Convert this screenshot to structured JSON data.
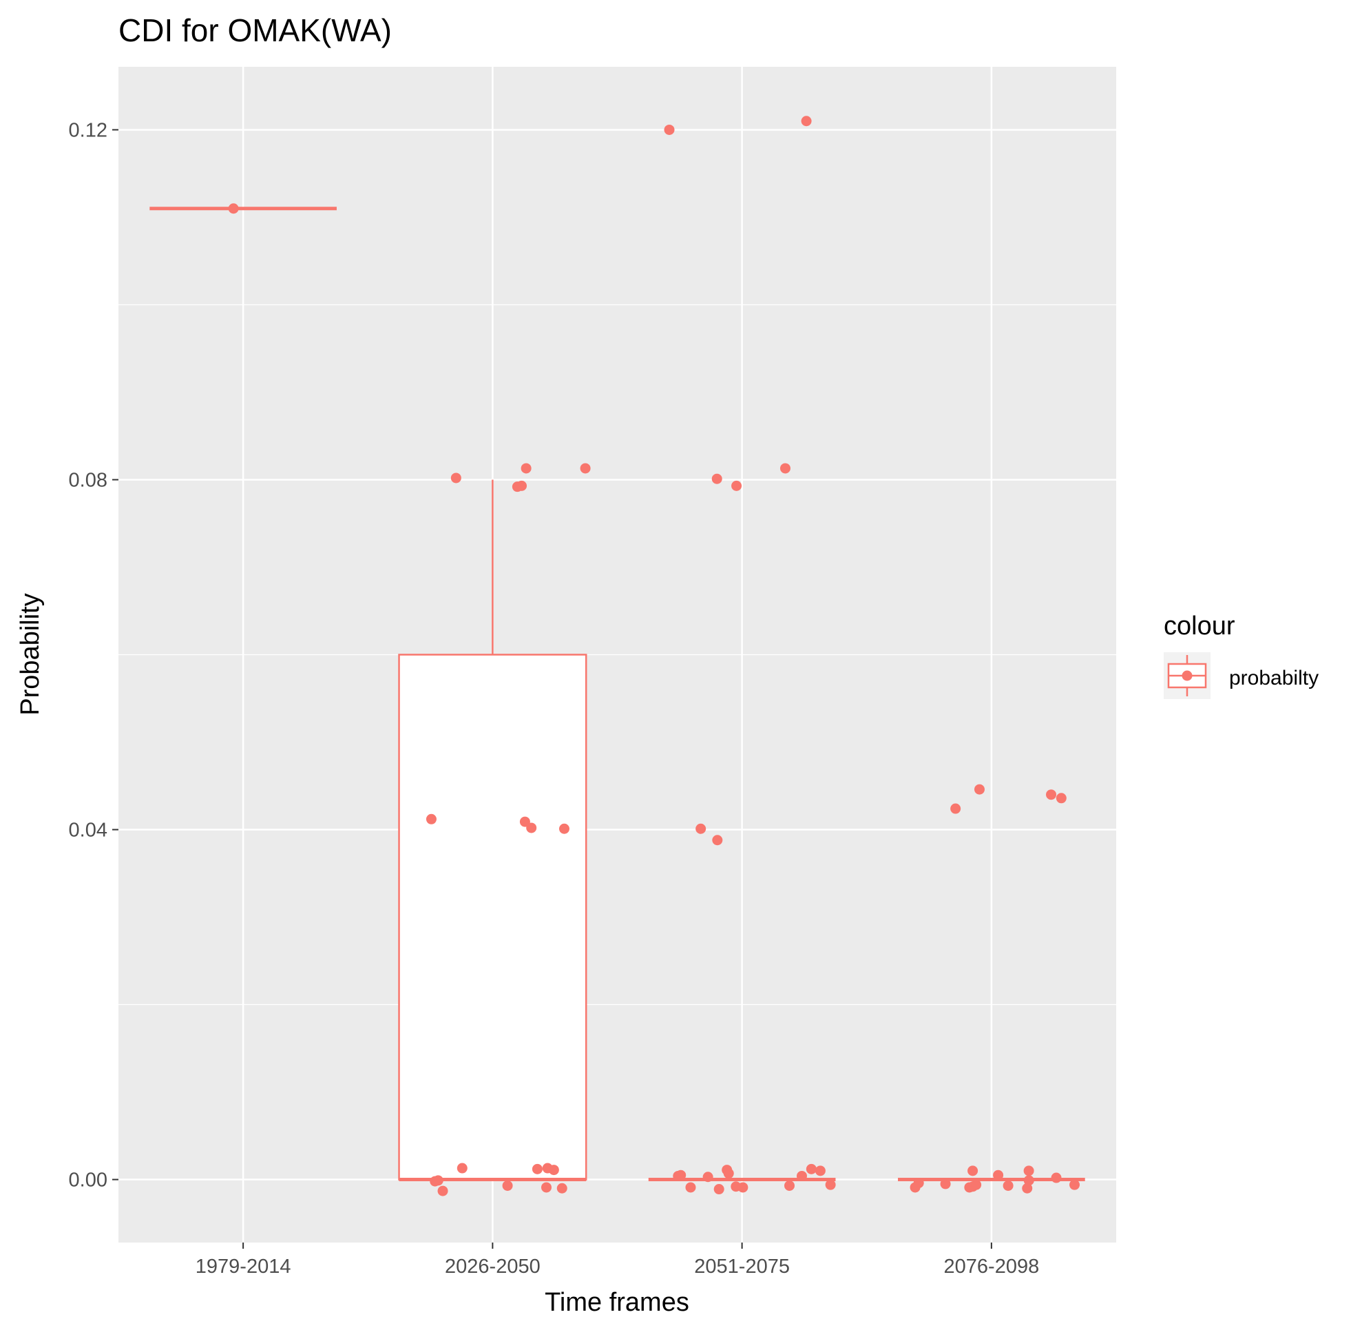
{
  "chart_data": {
    "type": "boxplot+jitter",
    "title": "CDI for OMAK(WA)",
    "xlabel": "Time frames",
    "ylabel": "Probability",
    "categories": [
      "1979-2014",
      "2026-2050",
      "2051-2075",
      "2076-2098"
    ],
    "y_ticks": [
      0.0,
      0.04,
      0.08,
      0.12
    ],
    "y_tick_labels": [
      "0.00",
      "0.04",
      "0.08",
      "0.12"
    ],
    "ylim": [
      -0.0072,
      0.1272
    ],
    "grid": true,
    "color": "#F8766D",
    "panel_color": "#EBEBEB",
    "legend": {
      "title": "colour",
      "label": "probabilty",
      "position": "right"
    },
    "boxes": [
      {
        "category": "1979-2014",
        "q1": 0.111,
        "median": 0.111,
        "q3": 0.111,
        "whisker_low": 0.111,
        "whisker_high": 0.111
      },
      {
        "category": "2026-2050",
        "q1": 0.0,
        "median": 0.0,
        "q3": 0.06,
        "whisker_low": 0.0,
        "whisker_high": 0.08
      },
      {
        "category": "2051-2075",
        "q1": 0.0,
        "median": 0.0,
        "q3": 0.0,
        "whisker_low": 0.0,
        "whisker_high": 0.0
      },
      {
        "category": "2076-2098",
        "q1": 0.0,
        "median": 0.0,
        "q3": 0.0,
        "whisker_low": 0.0,
        "whisker_high": 0.0
      }
    ],
    "points": [
      {
        "category": "1979-2014",
        "values": [
          0.111
        ]
      },
      {
        "category": "2026-2050",
        "values": [
          0.0793,
          0.0802,
          0.0792,
          0.0813,
          0.0813,
          0.0409,
          0.0412,
          0.0401,
          0.0402,
          0.0011,
          0.0012,
          0.0013,
          0.0013,
          -0.0002,
          -0.0007,
          -0.0013,
          -0.0001,
          -0.0009,
          -0.001
        ]
      },
      {
        "category": "2051-2075",
        "values": [
          0.121,
          0.12,
          0.0793,
          0.0813,
          0.0801,
          0.0401,
          0.0388,
          0.001,
          0.0012,
          0.0011,
          0.0007,
          0.0004,
          0.0005,
          0.0004,
          0.0003,
          -0.0011,
          -0.0009,
          -0.0006,
          -0.0008,
          -0.0007,
          -0.0009
        ]
      },
      {
        "category": "2076-2098",
        "values": [
          0.0446,
          0.0436,
          0.044,
          0.0424,
          0.0005,
          0.0002,
          -0.0001,
          -0.0004,
          -0.0007,
          -0.0009,
          -0.001,
          0.001,
          0.001,
          -0.0005,
          -0.0009,
          -0.0008,
          -0.0006,
          -0.0006
        ]
      }
    ]
  }
}
